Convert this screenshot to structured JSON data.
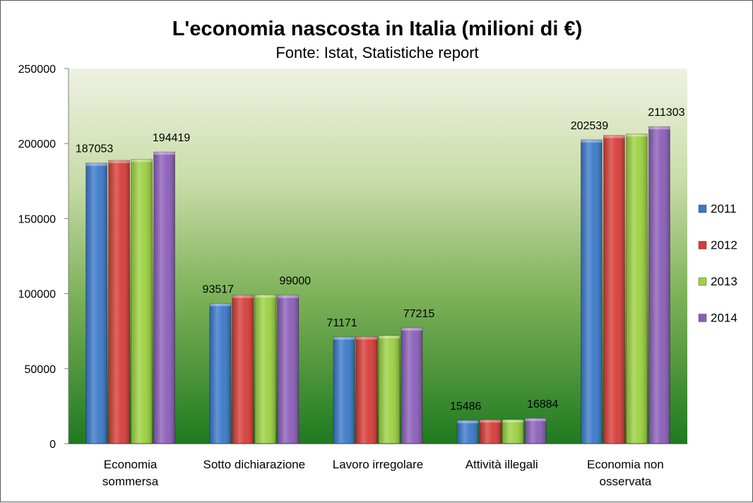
{
  "chart_data": {
    "type": "bar",
    "title": "L'economia nascosta in Italia (milioni di €)",
    "subtitle": "Fonte: Istat, Statistiche report",
    "categories": [
      [
        "Economia",
        "sommersa"
      ],
      [
        "Sotto dichiarazione"
      ],
      [
        "Lavoro irregolare"
      ],
      [
        "Attività illegali"
      ],
      [
        "Economia non",
        "osservata"
      ]
    ],
    "series": [
      {
        "name": "2011",
        "color": "#3a78c9",
        "values": [
          187053,
          93517,
          71171,
          15486,
          202539
        ]
      },
      {
        "name": "2012",
        "color": "#d63c38",
        "values": [
          188800,
          99000,
          71300,
          15900,
          205500
        ]
      },
      {
        "name": "2013",
        "color": "#9bd03f",
        "values": [
          189500,
          99200,
          72000,
          16000,
          206500
        ]
      },
      {
        "name": "2014",
        "color": "#8a5db8",
        "values": [
          194419,
          99000,
          77215,
          16884,
          211303
        ]
      }
    ],
    "data_labels": [
      {
        "category": 0,
        "series": 0,
        "text": "187053"
      },
      {
        "category": 0,
        "series": 3,
        "text": "194419"
      },
      {
        "category": 1,
        "series": 0,
        "text": "93517"
      },
      {
        "category": 1,
        "series": 3,
        "text": "99000"
      },
      {
        "category": 2,
        "series": 0,
        "text": "71171"
      },
      {
        "category": 2,
        "series": 3,
        "text": "77215"
      },
      {
        "category": 3,
        "series": 0,
        "text": "15486"
      },
      {
        "category": 3,
        "series": 3,
        "text": "16884"
      },
      {
        "category": 4,
        "series": 0,
        "text": "202539"
      },
      {
        "category": 4,
        "series": 3,
        "text": "211303"
      }
    ],
    "ylim": [
      0,
      250000
    ],
    "yticks": [
      0,
      50000,
      100000,
      150000,
      200000,
      250000
    ],
    "xlabel": "",
    "ylabel": "",
    "grid": false,
    "legend_position": "right",
    "plot_background": "gradient light-to-dark green"
  }
}
